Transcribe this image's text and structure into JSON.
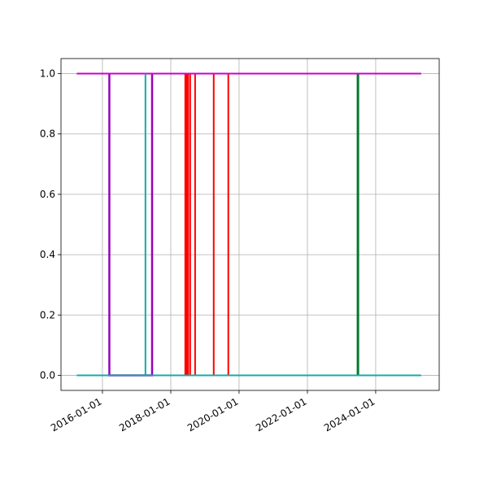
{
  "chart_data": {
    "type": "line",
    "xlim": [
      "2014-10-15",
      "2025-11-10"
    ],
    "xticks": [
      "2016-01-01",
      "2018-01-01",
      "2020-01-01",
      "2022-01-01",
      "2024-01-01"
    ],
    "ylim": [
      -0.05,
      1.05
    ],
    "yticks": [
      {
        "value": 0,
        "label": "0.0"
      },
      {
        "value": 0.2,
        "label": "0.2"
      },
      {
        "value": 0.4,
        "label": "0.4"
      },
      {
        "value": 0.6,
        "label": "0.6"
      },
      {
        "value": 0.8,
        "label": "0.8"
      },
      {
        "value": 1,
        "label": "1.0"
      }
    ],
    "grid": true,
    "series": [
      {
        "color": "#ff0000",
        "x": [
          "2018-06-05",
          "2018-06-05",
          "2018-06-05",
          "2018-06-20",
          "2018-06-20",
          "2018-06-20",
          "2018-07-05",
          "2018-07-05",
          "2018-07-05",
          "2018-07-27",
          "2018-07-27",
          "2018-07-27",
          "2018-09-18",
          "2018-09-18",
          "2018-09-18",
          "2019-04-05",
          "2019-04-05",
          "2019-04-05",
          "2019-09-08",
          "2019-09-08",
          "2019-09-08"
        ],
        "values": [
          0,
          1,
          0,
          0,
          1,
          0,
          0,
          1,
          0,
          0,
          1,
          0,
          0,
          1,
          0,
          0,
          1,
          0,
          0,
          1,
          0
        ]
      },
      {
        "color": "#9900bb",
        "x": [
          "2016-03-15",
          "2016-03-15",
          "2016-03-15",
          "2017-06-15",
          "2017-06-15",
          "2017-06-15"
        ],
        "values": [
          0,
          1,
          0,
          0,
          1,
          0
        ]
      },
      {
        "color": "#bb0000",
        "x": [
          "2016-03-15",
          "2017-04-01"
        ],
        "values": [
          0,
          0
        ]
      },
      {
        "color": "#007a2a",
        "x": [
          "2023-06-25",
          "2023-06-25",
          "2023-06-25"
        ],
        "values": [
          0,
          1,
          0
        ]
      },
      {
        "color": "#cc00cc",
        "x": [
          "2015-04-01",
          "2025-05-01"
        ],
        "values": [
          1,
          1
        ]
      },
      {
        "color": "#17a9a9",
        "x": [
          "2015-04-01",
          "2017-04-05",
          "2017-04-05",
          "2017-04-05",
          "2025-05-01"
        ],
        "values": [
          0,
          0,
          1,
          0,
          0
        ]
      }
    ]
  }
}
